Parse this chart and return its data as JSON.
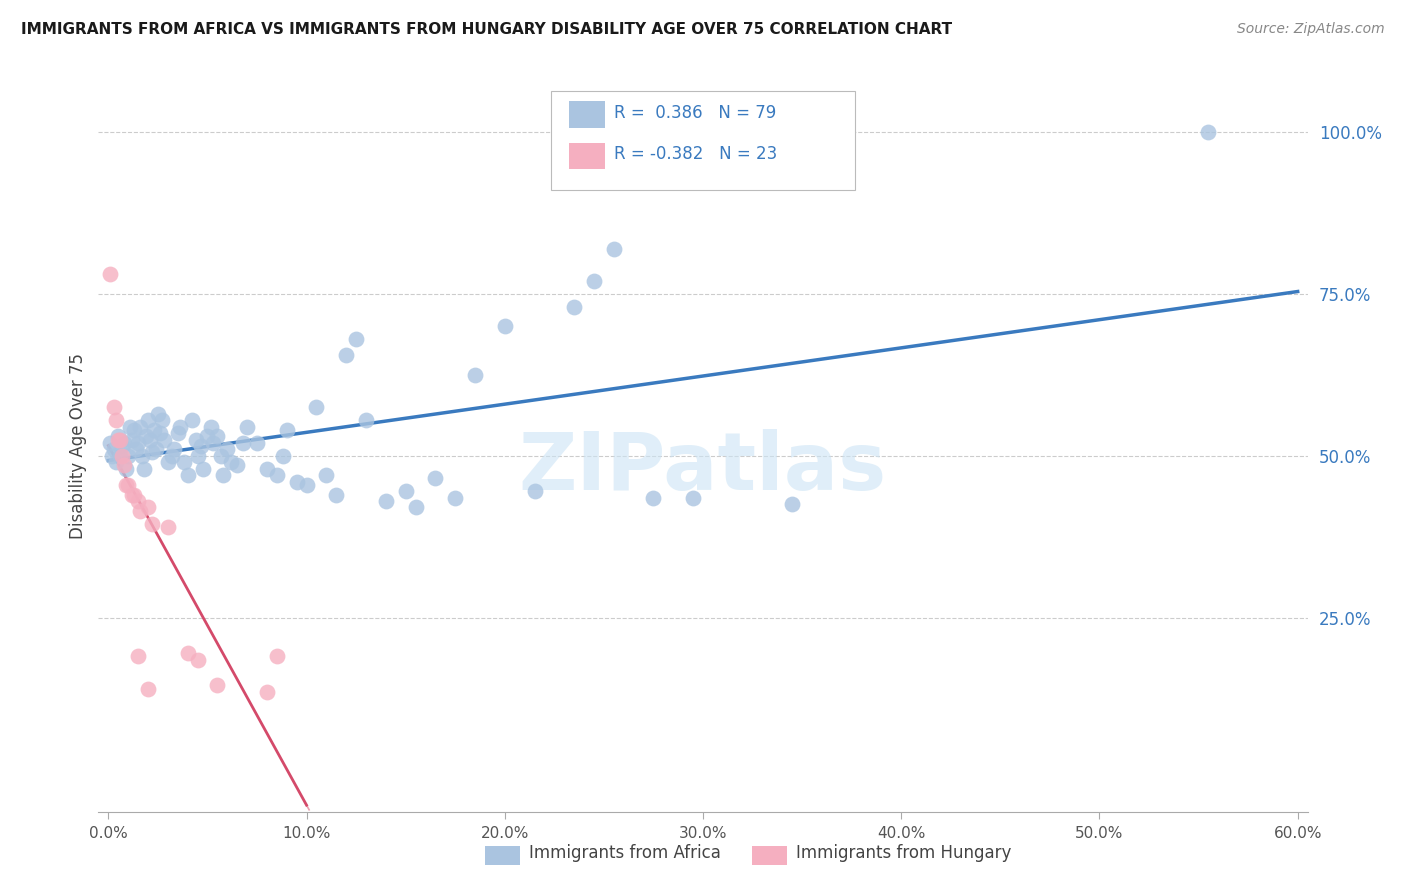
{
  "title": "IMMIGRANTS FROM AFRICA VS IMMIGRANTS FROM HUNGARY DISABILITY AGE OVER 75 CORRELATION CHART",
  "source": "Source: ZipAtlas.com",
  "ylabel": "Disability Age Over 75",
  "x_tick_labels": [
    "0.0%",
    "10.0%",
    "20.0%",
    "30.0%",
    "40.0%",
    "50.0%",
    "60.0%"
  ],
  "x_tick_values": [
    0.0,
    0.1,
    0.2,
    0.3,
    0.4,
    0.5,
    0.6
  ],
  "y_tick_labels": [
    "25.0%",
    "50.0%",
    "75.0%",
    "100.0%"
  ],
  "y_tick_values": [
    0.25,
    0.5,
    0.75,
    1.0
  ],
  "xlim": [
    -0.005,
    0.605
  ],
  "ylim": [
    -0.05,
    1.08
  ],
  "r_africa": 0.386,
  "n_africa": 79,
  "r_hungary": -0.382,
  "n_hungary": 23,
  "legend_label_africa": "Immigrants from Africa",
  "legend_label_hungary": "Immigrants from Hungary",
  "color_africa": "#aac4e0",
  "color_hungary": "#f5afc0",
  "trend_color_africa": "#3a7abf",
  "trend_color_hungary": "#d44a6a",
  "trend_color_hungary_ext": "#e8a0b0",
  "watermark": "ZIPatlas",
  "africa_points": [
    [
      0.001,
      0.52
    ],
    [
      0.002,
      0.5
    ],
    [
      0.003,
      0.51
    ],
    [
      0.004,
      0.49
    ],
    [
      0.005,
      0.53
    ],
    [
      0.006,
      0.5
    ],
    [
      0.007,
      0.515
    ],
    [
      0.008,
      0.52
    ],
    [
      0.009,
      0.48
    ],
    [
      0.01,
      0.5
    ],
    [
      0.011,
      0.545
    ],
    [
      0.012,
      0.525
    ],
    [
      0.013,
      0.54
    ],
    [
      0.014,
      0.51
    ],
    [
      0.015,
      0.52
    ],
    [
      0.016,
      0.545
    ],
    [
      0.017,
      0.5
    ],
    [
      0.018,
      0.48
    ],
    [
      0.019,
      0.53
    ],
    [
      0.02,
      0.555
    ],
    [
      0.021,
      0.525
    ],
    [
      0.022,
      0.505
    ],
    [
      0.023,
      0.54
    ],
    [
      0.024,
      0.51
    ],
    [
      0.025,
      0.565
    ],
    [
      0.026,
      0.535
    ],
    [
      0.027,
      0.555
    ],
    [
      0.028,
      0.525
    ],
    [
      0.03,
      0.49
    ],
    [
      0.032,
      0.5
    ],
    [
      0.033,
      0.51
    ],
    [
      0.035,
      0.535
    ],
    [
      0.036,
      0.545
    ],
    [
      0.038,
      0.49
    ],
    [
      0.04,
      0.47
    ],
    [
      0.042,
      0.555
    ],
    [
      0.044,
      0.525
    ],
    [
      0.045,
      0.5
    ],
    [
      0.047,
      0.515
    ],
    [
      0.048,
      0.48
    ],
    [
      0.05,
      0.53
    ],
    [
      0.052,
      0.545
    ],
    [
      0.053,
      0.52
    ],
    [
      0.055,
      0.53
    ],
    [
      0.057,
      0.5
    ],
    [
      0.058,
      0.47
    ],
    [
      0.06,
      0.51
    ],
    [
      0.062,
      0.49
    ],
    [
      0.065,
      0.485
    ],
    [
      0.068,
      0.52
    ],
    [
      0.07,
      0.545
    ],
    [
      0.075,
      0.52
    ],
    [
      0.08,
      0.48
    ],
    [
      0.085,
      0.47
    ],
    [
      0.088,
      0.5
    ],
    [
      0.09,
      0.54
    ],
    [
      0.095,
      0.46
    ],
    [
      0.1,
      0.455
    ],
    [
      0.105,
      0.575
    ],
    [
      0.11,
      0.47
    ],
    [
      0.115,
      0.44
    ],
    [
      0.12,
      0.655
    ],
    [
      0.125,
      0.68
    ],
    [
      0.13,
      0.555
    ],
    [
      0.14,
      0.43
    ],
    [
      0.15,
      0.445
    ],
    [
      0.155,
      0.42
    ],
    [
      0.165,
      0.465
    ],
    [
      0.175,
      0.435
    ],
    [
      0.185,
      0.625
    ],
    [
      0.2,
      0.7
    ],
    [
      0.215,
      0.445
    ],
    [
      0.235,
      0.73
    ],
    [
      0.245,
      0.77
    ],
    [
      0.255,
      0.82
    ],
    [
      0.275,
      0.435
    ],
    [
      0.295,
      0.435
    ],
    [
      0.345,
      0.425
    ],
    [
      0.555,
      1.0
    ]
  ],
  "hungary_points": [
    [
      0.001,
      0.78
    ],
    [
      0.003,
      0.575
    ],
    [
      0.004,
      0.555
    ],
    [
      0.005,
      0.525
    ],
    [
      0.006,
      0.525
    ],
    [
      0.007,
      0.5
    ],
    [
      0.008,
      0.485
    ],
    [
      0.009,
      0.455
    ],
    [
      0.01,
      0.455
    ],
    [
      0.012,
      0.44
    ],
    [
      0.013,
      0.44
    ],
    [
      0.015,
      0.43
    ],
    [
      0.016,
      0.415
    ],
    [
      0.02,
      0.42
    ],
    [
      0.022,
      0.395
    ],
    [
      0.03,
      0.39
    ],
    [
      0.04,
      0.195
    ],
    [
      0.045,
      0.185
    ],
    [
      0.055,
      0.145
    ],
    [
      0.08,
      0.135
    ],
    [
      0.085,
      0.19
    ],
    [
      0.015,
      0.19
    ],
    [
      0.02,
      0.14
    ]
  ]
}
